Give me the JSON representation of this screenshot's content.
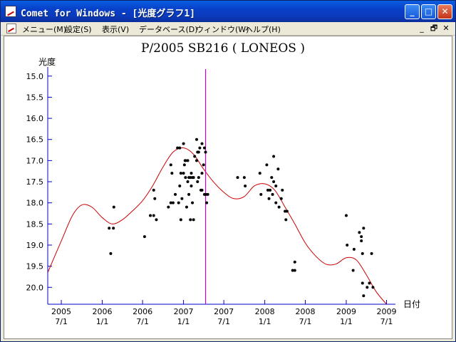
{
  "window": {
    "title": "Comet for Windows - [光度グラフ1]"
  },
  "title_buttons": {
    "minimize": "_",
    "maximize": "□",
    "close": "✕"
  },
  "menu": {
    "items": [
      "メニュー(M)",
      "設定(S)",
      "表示(V)",
      "データベース(D)",
      "ウィンドウ(W)",
      "ヘルプ(H)"
    ],
    "mdi": {
      "minimize": "_",
      "restore": "🗗",
      "close": "✕"
    }
  },
  "colors": {
    "curve": "#cc0000",
    "marker": "#cc00cc",
    "axis": "#0000cc",
    "titlebar": "#0a5de0"
  },
  "chart_data": {
    "type": "scatter",
    "title": "P/2005 SB216 ( LONEOS )",
    "ylabel": "光度",
    "xlabel": "日付",
    "ylim": [
      20.4,
      14.7
    ],
    "y_inverted": true,
    "xlim": [
      "2005-05-01",
      "2009-08-10"
    ],
    "y_ticks": [
      "15.0",
      "15.5",
      "16.0",
      "16.5",
      "17.0",
      "17.5",
      "18.0",
      "18.5",
      "19.0",
      "19.5",
      "20.0"
    ],
    "x_ticks": [
      {
        "date": "2005-07-01",
        "label": [
          "2005",
          "7/1"
        ]
      },
      {
        "date": "2006-01-01",
        "label": [
          "2006",
          "1/1"
        ]
      },
      {
        "date": "2006-07-01",
        "label": [
          "2006",
          "7/1"
        ]
      },
      {
        "date": "2007-01-01",
        "label": [
          "2007",
          "1/1"
        ]
      },
      {
        "date": "2007-07-01",
        "label": [
          "2007",
          "7/1"
        ]
      },
      {
        "date": "2008-01-01",
        "label": [
          "2008",
          "1/1"
        ]
      },
      {
        "date": "2008-07-01",
        "label": [
          "2008",
          "7/1"
        ]
      },
      {
        "date": "2009-01-01",
        "label": [
          "2009",
          "1/1"
        ]
      },
      {
        "date": "2009-07-01",
        "label": [
          "2009",
          "7/1"
        ]
      }
    ],
    "marker_date": "2007-04-10",
    "curve": [
      [
        "2005-05-01",
        19.65
      ],
      [
        "2005-07-01",
        18.9
      ],
      [
        "2005-08-20",
        18.3
      ],
      [
        "2005-10-01",
        18.05
      ],
      [
        "2005-11-15",
        18.1
      ],
      [
        "2006-01-01",
        18.35
      ],
      [
        "2006-02-15",
        18.5
      ],
      [
        "2006-04-01",
        18.4
      ],
      [
        "2006-05-15",
        18.2
      ],
      [
        "2006-07-01",
        17.95
      ],
      [
        "2006-08-15",
        17.6
      ],
      [
        "2006-10-01",
        17.15
      ],
      [
        "2006-11-15",
        16.8
      ],
      [
        "2007-01-01",
        16.7
      ],
      [
        "2007-02-15",
        16.85
      ],
      [
        "2007-04-01",
        17.2
      ],
      [
        "2007-05-15",
        17.5
      ],
      [
        "2007-07-01",
        17.75
      ],
      [
        "2007-08-15",
        17.9
      ],
      [
        "2007-10-01",
        17.85
      ],
      [
        "2007-11-15",
        17.6
      ],
      [
        "2008-01-01",
        17.55
      ],
      [
        "2008-02-15",
        17.7
      ],
      [
        "2008-04-01",
        18.1
      ],
      [
        "2008-05-15",
        18.5
      ],
      [
        "2008-07-01",
        18.95
      ],
      [
        "2008-08-15",
        19.25
      ],
      [
        "2008-10-01",
        19.45
      ],
      [
        "2008-11-15",
        19.45
      ],
      [
        "2009-01-01",
        19.3
      ],
      [
        "2009-02-15",
        19.35
      ],
      [
        "2009-04-01",
        19.7
      ],
      [
        "2009-05-15",
        20.1
      ],
      [
        "2009-07-01",
        20.4
      ]
    ],
    "points": [
      [
        "2006-02-01",
        18.6
      ],
      [
        "2006-02-08",
        19.2
      ],
      [
        "2006-02-20",
        18.6
      ],
      [
        "2006-02-22",
        18.1
      ],
      [
        "2006-07-10",
        18.8
      ],
      [
        "2006-08-05",
        18.3
      ],
      [
        "2006-08-20",
        18.3
      ],
      [
        "2006-08-20",
        17.7
      ],
      [
        "2006-08-25",
        17.9
      ],
      [
        "2006-09-01",
        18.4
      ],
      [
        "2006-10-25",
        18.1
      ],
      [
        "2006-11-05",
        17.1
      ],
      [
        "2006-11-05",
        18.0
      ],
      [
        "2006-11-10",
        17.3
      ],
      [
        "2006-11-15",
        18.0
      ],
      [
        "2006-11-25",
        17.8
      ],
      [
        "2006-12-05",
        16.7
      ],
      [
        "2006-12-10",
        18.0
      ],
      [
        "2006-12-15",
        16.7
      ],
      [
        "2006-12-15",
        17.6
      ],
      [
        "2006-12-20",
        17.3
      ],
      [
        "2006-12-20",
        18.4
      ],
      [
        "2006-12-25",
        17.9
      ],
      [
        "2007-01-01",
        16.6
      ],
      [
        "2007-01-01",
        17.3
      ],
      [
        "2007-01-05",
        17.1
      ],
      [
        "2007-01-08",
        17.0
      ],
      [
        "2007-01-10",
        17.4
      ],
      [
        "2007-01-10",
        17.0
      ],
      [
        "2007-01-15",
        18.1
      ],
      [
        "2007-01-20",
        17.0
      ],
      [
        "2007-01-20",
        17.5
      ],
      [
        "2007-01-25",
        17.4
      ],
      [
        "2007-01-25",
        17.8
      ],
      [
        "2007-02-01",
        17.4
      ],
      [
        "2007-02-01",
        18.4
      ],
      [
        "2007-02-05",
        17.6
      ],
      [
        "2007-02-05",
        17.3
      ],
      [
        "2007-02-10",
        17.4
      ],
      [
        "2007-02-10",
        18.0
      ],
      [
        "2007-02-15",
        17.4
      ],
      [
        "2007-02-15",
        18.4
      ],
      [
        "2007-02-20",
        16.9
      ],
      [
        "2007-03-01",
        16.5
      ],
      [
        "2007-03-01",
        17.0
      ],
      [
        "2007-03-05",
        17.5
      ],
      [
        "2007-03-05",
        16.8
      ],
      [
        "2007-03-10",
        16.8
      ],
      [
        "2007-03-10",
        17.4
      ],
      [
        "2007-03-15",
        16.7
      ],
      [
        "2007-03-20",
        17.7
      ],
      [
        "2007-03-25",
        16.6
      ],
      [
        "2007-03-25",
        17.7
      ],
      [
        "2007-03-25",
        17.3
      ],
      [
        "2007-04-01",
        17.1
      ],
      [
        "2007-04-05",
        16.7
      ],
      [
        "2007-04-05",
        17.8
      ],
      [
        "2007-04-10",
        16.8
      ],
      [
        "2007-04-12",
        17.8
      ],
      [
        "2007-04-15",
        18.0
      ],
      [
        "2007-04-20",
        17.8
      ],
      [
        "2007-09-01",
        17.4
      ],
      [
        "2007-10-01",
        17.4
      ],
      [
        "2007-10-05",
        17.6
      ],
      [
        "2007-12-10",
        17.3
      ],
      [
        "2007-12-15",
        17.8
      ],
      [
        "2008-01-10",
        17.1
      ],
      [
        "2008-01-15",
        17.7
      ],
      [
        "2008-01-20",
        17.9
      ],
      [
        "2008-01-25",
        17.7
      ],
      [
        "2008-02-01",
        17.4
      ],
      [
        "2008-02-05",
        17.8
      ],
      [
        "2008-02-10",
        16.9
      ],
      [
        "2008-02-10",
        17.5
      ],
      [
        "2008-02-20",
        18.0
      ],
      [
        "2008-02-20",
        17.6
      ],
      [
        "2008-03-01",
        17.2
      ],
      [
        "2008-03-05",
        18.1
      ],
      [
        "2008-03-15",
        17.9
      ],
      [
        "2008-03-20",
        17.7
      ],
      [
        "2008-04-01",
        18.2
      ],
      [
        "2008-04-05",
        18.4
      ],
      [
        "2008-04-10",
        18.2
      ],
      [
        "2008-05-05",
        19.6
      ],
      [
        "2008-05-15",
        19.6
      ],
      [
        "2008-05-15",
        19.4
      ],
      [
        "2009-01-01",
        18.3
      ],
      [
        "2009-01-05",
        19.0
      ],
      [
        "2009-02-01",
        19.6
      ],
      [
        "2009-02-05",
        19.1
      ],
      [
        "2009-03-01",
        18.7
      ],
      [
        "2009-03-10",
        18.9
      ],
      [
        "2009-03-10",
        18.8
      ],
      [
        "2009-03-15",
        19.2
      ],
      [
        "2009-03-15",
        19.9
      ],
      [
        "2009-03-20",
        18.6
      ],
      [
        "2009-03-20",
        20.2
      ],
      [
        "2009-04-05",
        20.0
      ],
      [
        "2009-04-15",
        19.9
      ],
      [
        "2009-04-25",
        19.2
      ],
      [
        "2009-05-01",
        20.0
      ]
    ]
  }
}
